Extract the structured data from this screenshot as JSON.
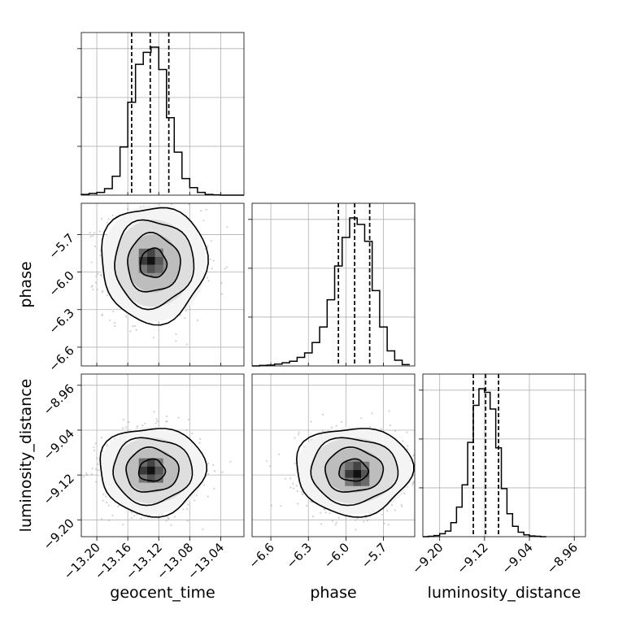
{
  "chart_data": {
    "type": "corner",
    "parameters": [
      {
        "name": "geocent_time",
        "label": "geocent_time",
        "range": [
          -13.22,
          -13.01
        ],
        "ticks": [
          -13.2,
          -13.16,
          -13.12,
          -13.08,
          -13.04
        ],
        "tick_labels": [
          "−13.20",
          "−13.16",
          "−13.12",
          "−13.08",
          "−13.04"
        ],
        "quantiles": [
          -13.155,
          -13.131,
          -13.107
        ],
        "hist_bins": [
          -13.22,
          -13.21,
          -13.2,
          -13.19,
          -13.18,
          -13.17,
          -13.16,
          -13.15,
          -13.14,
          -13.13,
          -13.12,
          -13.11,
          -13.1,
          -13.09,
          -13.08,
          -13.07,
          -13.06,
          -13.05,
          -13.04,
          -13.03,
          -13.02,
          -13.01
        ],
        "hist_counts": [
          2,
          5,
          8,
          19,
          55,
          140,
          270,
          380,
          415,
          430,
          365,
          225,
          125,
          48,
          22,
          8,
          2,
          1,
          0,
          0,
          0
        ]
      },
      {
        "name": "phase",
        "label": "phase",
        "range": [
          -6.75,
          -5.45
        ],
        "ticks": [
          -6.6,
          -6.3,
          -6.0,
          -5.7
        ],
        "tick_labels": [
          "−6.6",
          "−6.3",
          "−6.0",
          "−5.7"
        ],
        "quantiles": [
          -6.06,
          -5.93,
          -5.81
        ],
        "hist_bins": [
          -6.75,
          -6.69,
          -6.63,
          -6.57,
          -6.51,
          -6.45,
          -6.39,
          -6.33,
          -6.27,
          -6.21,
          -6.15,
          -6.09,
          -6.03,
          -5.97,
          -5.91,
          -5.85,
          -5.79,
          -5.73,
          -5.67,
          -5.61,
          -5.55,
          -5.49
        ],
        "hist_counts": [
          0,
          2,
          3,
          7,
          12,
          18,
          33,
          50,
          90,
          150,
          255,
          385,
          495,
          570,
          545,
          480,
          290,
          150,
          58,
          22,
          5
        ]
      },
      {
        "name": "luminosity_distance",
        "label": "luminosity_distance",
        "range": [
          -9.23,
          -8.94
        ],
        "ticks": [
          -9.2,
          -9.12,
          -9.04,
          -8.96
        ],
        "tick_labels": [
          "−9.20",
          "−9.12",
          "−9.04",
          "−8.96"
        ],
        "quantiles": [
          -9.14,
          -9.118,
          -9.095
        ],
        "hist_bins": [
          -9.23,
          -9.22,
          -9.21,
          -9.2,
          -9.19,
          -9.18,
          -9.17,
          -9.16,
          -9.15,
          -9.14,
          -9.13,
          -9.12,
          -9.11,
          -9.1,
          -9.09,
          -9.08,
          -9.07,
          -9.06,
          -9.05,
          -9.04,
          -9.03,
          -9.02,
          -9.01
        ],
        "hist_counts": [
          0,
          1,
          3,
          8,
          15,
          38,
          80,
          140,
          255,
          355,
          400,
          390,
          345,
          240,
          130,
          62,
          28,
          12,
          5,
          2,
          1,
          0
        ]
      }
    ],
    "pairs": [
      {
        "x": "geocent_time",
        "y": "phase",
        "center": [
          -13.127,
          -5.93
        ],
        "sigma": [
          0.0235,
          0.16
        ],
        "peak": [
          -13.13,
          -5.91
        ]
      },
      {
        "x": "geocent_time",
        "y": "luminosity_distance",
        "center": [
          -13.129,
          -9.112
        ],
        "sigma": [
          0.0235,
          0.027
        ],
        "peak": [
          -13.13,
          -9.112
        ]
      },
      {
        "x": "phase",
        "y": "luminosity_distance",
        "center": [
          -5.94,
          -9.112
        ],
        "sigma": [
          0.16,
          0.027
        ],
        "peak": [
          -5.91,
          -9.118
        ]
      }
    ],
    "contour_levels_sigma": [
      0.5,
      1.0,
      1.5,
      2.0
    ],
    "grid": true
  }
}
